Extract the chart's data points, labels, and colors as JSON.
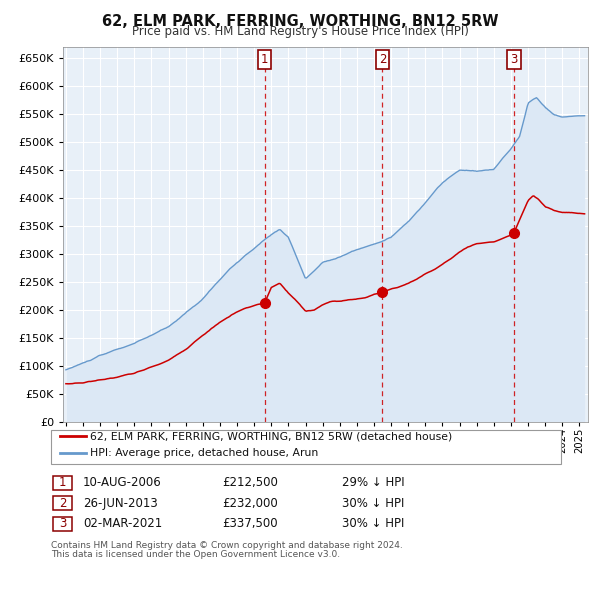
{
  "title": "62, ELM PARK, FERRING, WORTHING, BN12 5RW",
  "subtitle": "Price paid vs. HM Land Registry's House Price Index (HPI)",
  "legend_label_red": "62, ELM PARK, FERRING, WORTHING, BN12 5RW (detached house)",
  "legend_label_blue": "HPI: Average price, detached house, Arun",
  "footnote1": "Contains HM Land Registry data © Crown copyright and database right 2024.",
  "footnote2": "This data is licensed under the Open Government Licence v3.0.",
  "transactions": [
    {
      "num": 1,
      "date": "10-AUG-2006",
      "price": "£212,500",
      "pct": "29% ↓ HPI",
      "x_year": 2006.61,
      "y_val": 212500
    },
    {
      "num": 2,
      "date": "26-JUN-2013",
      "price": "£232,000",
      "pct": "30% ↓ HPI",
      "x_year": 2013.49,
      "y_val": 232000
    },
    {
      "num": 3,
      "date": "02-MAR-2021",
      "price": "£337,500",
      "pct": "30% ↓ HPI",
      "x_year": 2021.17,
      "y_val": 337500
    }
  ],
  "ylim": [
    0,
    670000
  ],
  "xlim_start": 1994.83,
  "xlim_end": 2025.5,
  "background_color": "#ffffff",
  "plot_bg_color": "#e8f0f8",
  "grid_color": "#ffffff",
  "red_color": "#cc0000",
  "blue_color": "#6699cc",
  "blue_fill_color": "#dce8f5",
  "hpi_waypoints_x": [
    1995,
    1996,
    1997,
    1998,
    1999,
    2000,
    2001,
    2002,
    2003,
    2004,
    2005,
    2006,
    2007,
    2007.5,
    2008,
    2009,
    2009.5,
    2010,
    2011,
    2012,
    2013,
    2014,
    2015,
    2016,
    2017,
    2018,
    2019,
    2020,
    2021,
    2021.5,
    2022,
    2022.5,
    2023,
    2023.5,
    2024,
    2025.3
  ],
  "hpi_waypoints_y": [
    93000,
    105000,
    118000,
    130000,
    140000,
    155000,
    170000,
    195000,
    220000,
    255000,
    285000,
    310000,
    335000,
    345000,
    330000,
    255000,
    270000,
    285000,
    295000,
    308000,
    318000,
    330000,
    358000,
    392000,
    428000,
    450000,
    448000,
    452000,
    488000,
    510000,
    570000,
    580000,
    562000,
    550000,
    545000,
    548000
  ],
  "red_waypoints_x": [
    1995,
    1996,
    1997,
    1998,
    1999,
    2000,
    2001,
    2002,
    2003,
    2004,
    2005,
    2005.5,
    2006,
    2006.61,
    2007,
    2007.5,
    2008,
    2008.5,
    2009,
    2009.5,
    2010,
    2010.5,
    2011,
    2011.5,
    2012,
    2012.5,
    2013,
    2013.49,
    2014,
    2014.5,
    2015,
    2015.5,
    2016,
    2016.5,
    2017,
    2017.5,
    2018,
    2018.5,
    2019,
    2019.5,
    2020,
    2020.5,
    2021,
    2021.17,
    2022,
    2022.3,
    2022.6,
    2023,
    2023.5,
    2024,
    2025.3
  ],
  "red_waypoints_y": [
    68000,
    70000,
    75000,
    80000,
    87000,
    98000,
    110000,
    130000,
    155000,
    178000,
    197000,
    203000,
    208000,
    212500,
    240000,
    248000,
    230000,
    215000,
    198000,
    200000,
    210000,
    215000,
    216000,
    218000,
    220000,
    222000,
    228000,
    232000,
    237000,
    242000,
    248000,
    255000,
    265000,
    272000,
    282000,
    292000,
    303000,
    313000,
    318000,
    320000,
    322000,
    328000,
    334000,
    337500,
    396000,
    405000,
    398000,
    385000,
    378000,
    375000,
    372000
  ]
}
